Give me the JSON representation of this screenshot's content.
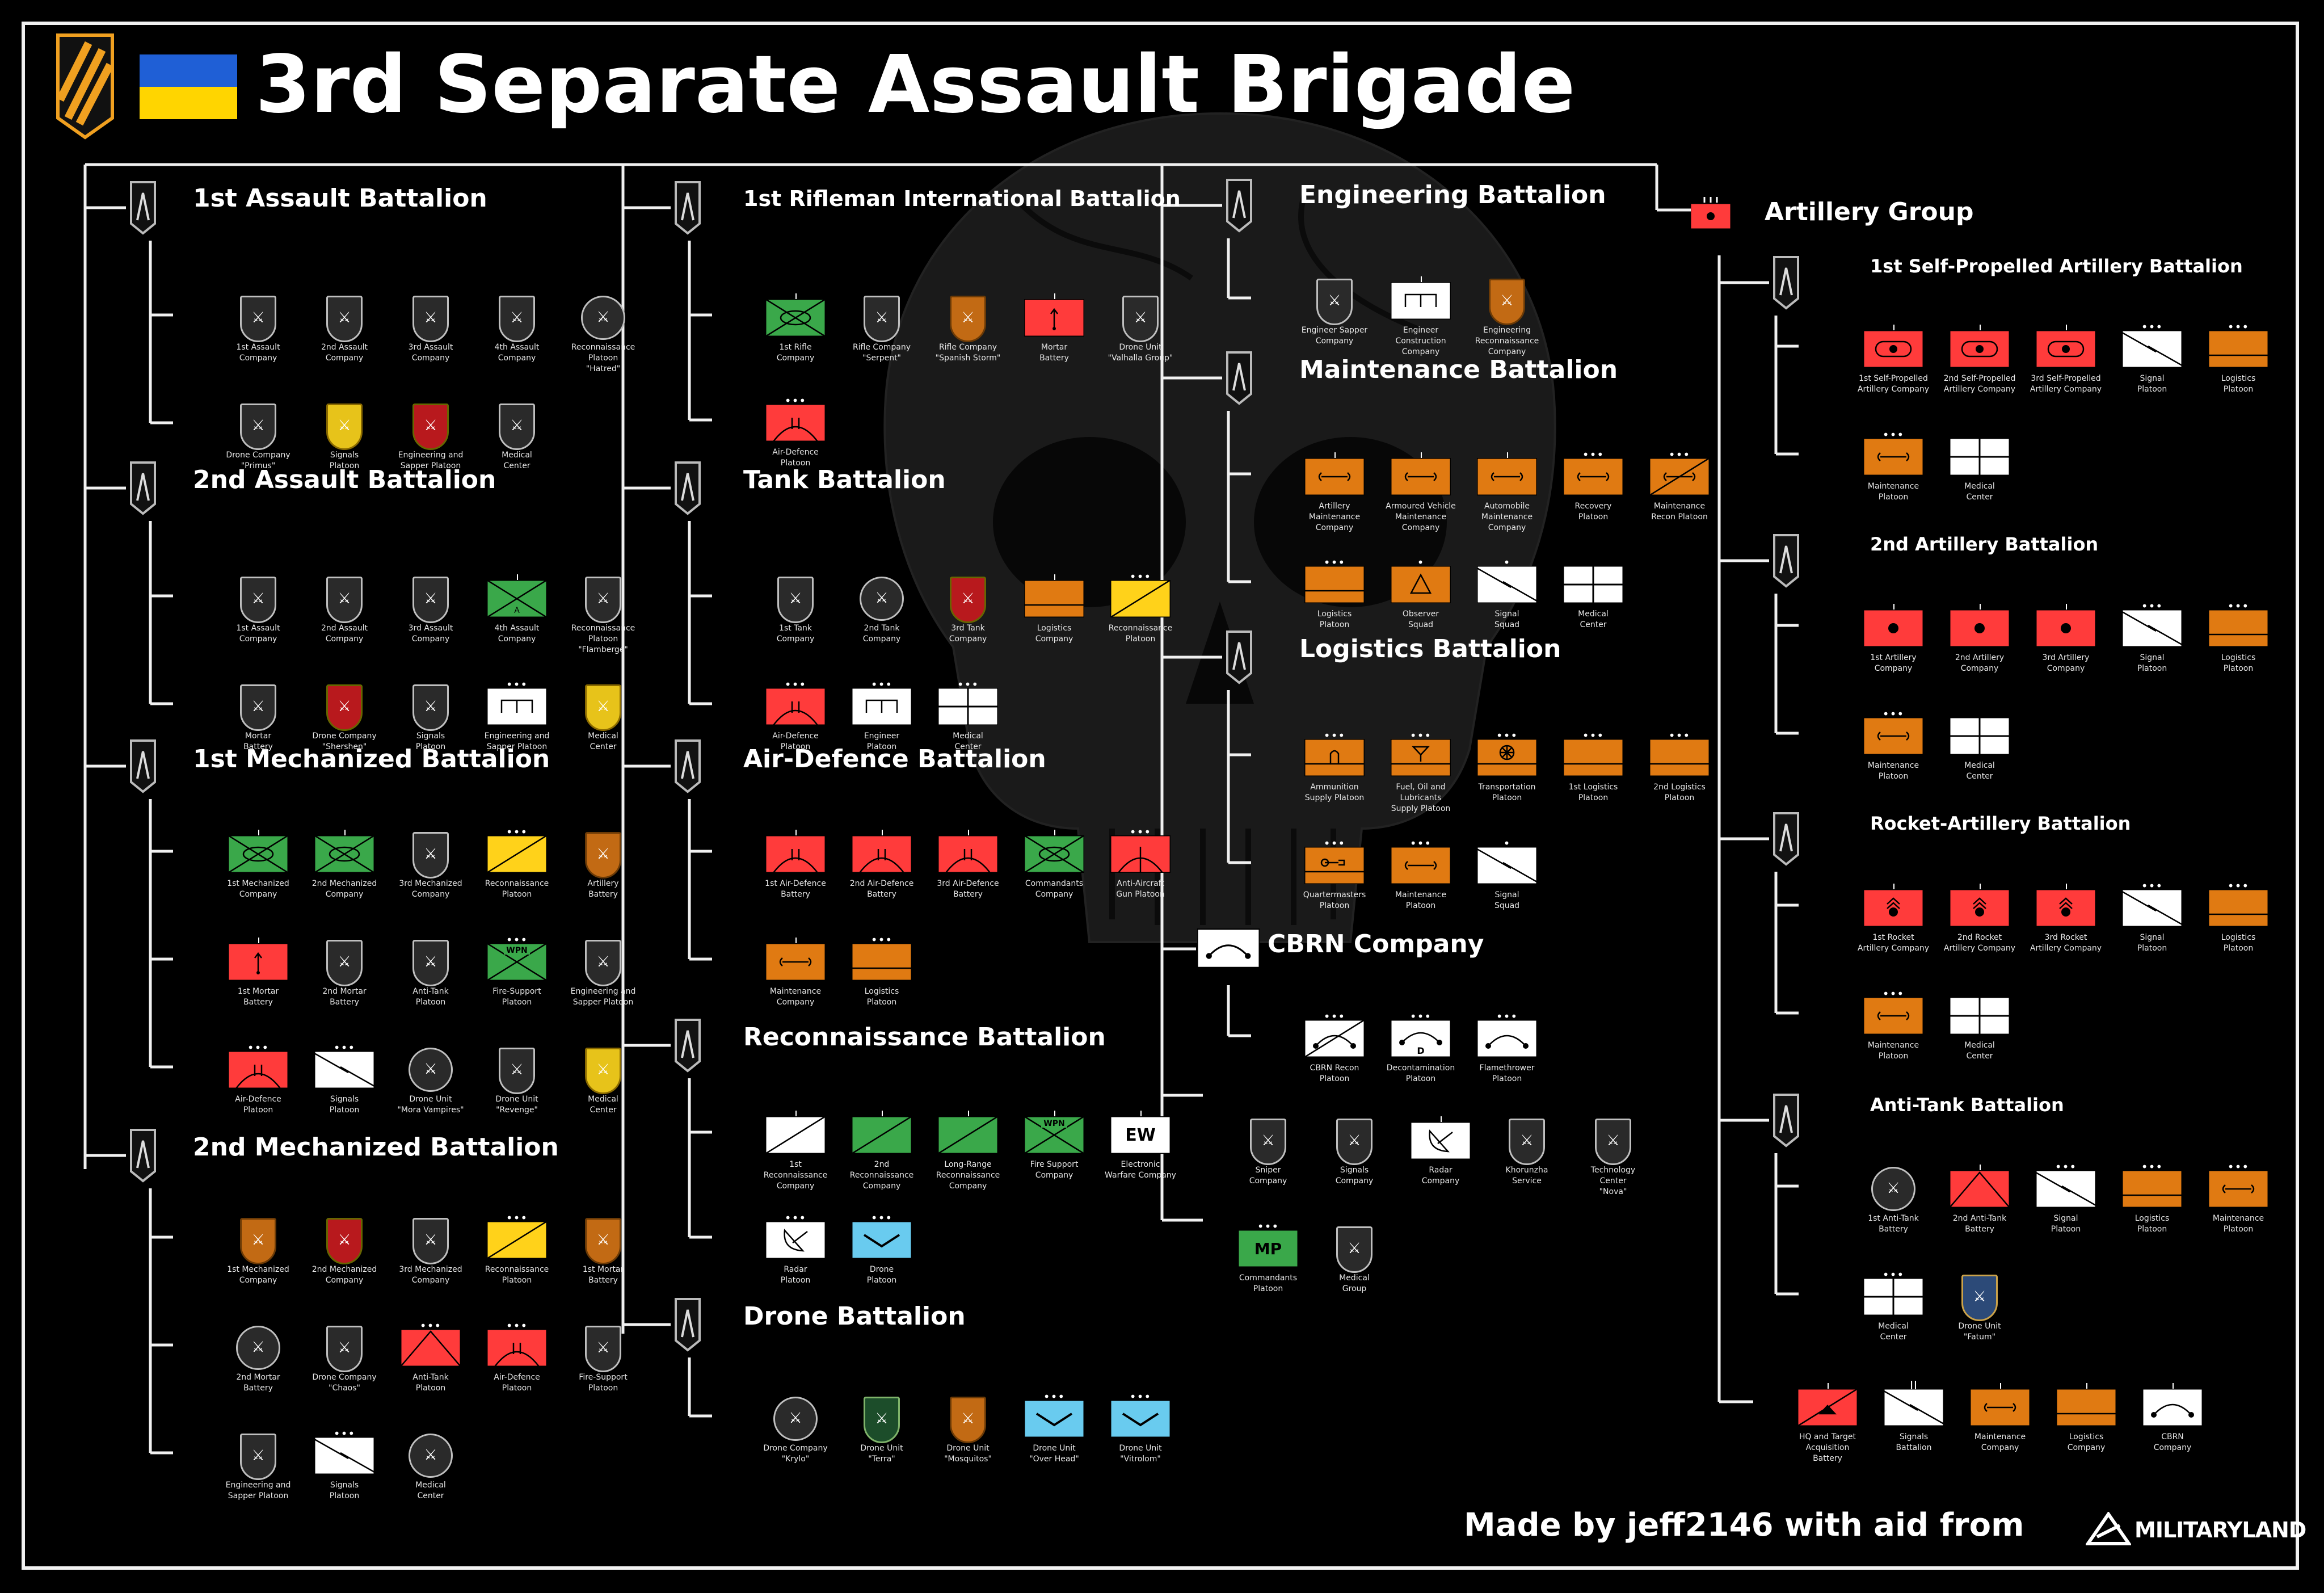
{
  "title": "3rd Separate Assault Brigade",
  "credit": "Made by jeff2146 with aid from",
  "credit_logo": "MILITARYLAND",
  "colors": {
    "orange": "#e07a12",
    "red": "#ff3b3b",
    "green": "#3aa84a",
    "yellow": "#ffd21a",
    "blue": "#69cbef",
    "white": "#ffffff"
  },
  "sections": [
    {
      "title": "1st Assault Battalion",
      "rows": [
        [
          {
            "label": "1st Assault\nCompany",
            "t": "patch"
          },
          {
            "label": "2nd Assault\nCompany",
            "t": "patch"
          },
          {
            "label": "3rd Assault\nCompany",
            "t": "patch"
          },
          {
            "label": "4th Assault\nCompany",
            "t": "patch"
          },
          {
            "label": "Reconnaissance\nPlatoon\n\"Hatred\"",
            "t": "round"
          }
        ],
        [
          {
            "label": "Drone Company\n\"Primus\"",
            "t": "patch"
          },
          {
            "label": "Signals\nPlatoon",
            "t": "patchY"
          },
          {
            "label": "Engineering and\nSapper Platoon",
            "t": "patchR"
          },
          {
            "label": "Medical\nCenter",
            "t": "patch"
          }
        ]
      ]
    },
    {
      "title": "2nd Assault Battalion",
      "rows": [
        [
          {
            "label": "1st Assault\nCompany",
            "t": "patch"
          },
          {
            "label": "2nd Assault\nCompany",
            "t": "patch"
          },
          {
            "label": "3rd Assault\nCompany",
            "t": "patch"
          },
          {
            "label": "4th Assault\nCompany",
            "t": "grnA",
            "tick": true
          },
          {
            "label": "Reconnaissance\nPlatoon\n\"Flamberge\"",
            "t": "patch"
          }
        ],
        [
          {
            "label": "Mortar\nBattery",
            "t": "patch"
          },
          {
            "label": "Drone Company\n\"Shershen\"",
            "t": "patchR"
          },
          {
            "label": "Signals\nPlatoon",
            "t": "patch"
          },
          {
            "label": "Engineering and\nSapper Platoon",
            "t": "eng",
            "dots": "•••"
          },
          {
            "label": "Medical\nCenter",
            "t": "patchY"
          }
        ]
      ]
    },
    {
      "title": "1st Mechanized Battalion",
      "rows": [
        [
          {
            "label": "1st Mechanized\nCompany",
            "t": "mech",
            "tick": true
          },
          {
            "label": "2nd Mechanized\nCompany",
            "t": "mech",
            "tick": true
          },
          {
            "label": "3rd Mechanized\nCompany",
            "t": "patch"
          },
          {
            "label": "Reconnaissance\nPlatoon",
            "t": "recon",
            "dots": "•••"
          },
          {
            "label": "Artillery\nBattery",
            "t": "patchO"
          }
        ],
        [
          {
            "label": "1st Mortar\nBattery",
            "t": "mortar",
            "tick": true
          },
          {
            "label": "2nd Mortar\nBattery",
            "t": "patch"
          },
          {
            "label": "Anti-Tank\nPlatoon",
            "t": "patch"
          },
          {
            "label": "Fire-Support\nPlatoon",
            "t": "wpn",
            "dots": "•••"
          },
          {
            "label": "Engineering and\nSapper Platoon",
            "t": "patch"
          }
        ],
        [
          {
            "label": "Air-Defence\nPlatoon",
            "t": "airdef",
            "dots": "•••"
          },
          {
            "label": "Signals\nPlatoon",
            "t": "signal",
            "dots": "•••"
          },
          {
            "label": "Drone Unit\n\"Mora Vampires\"",
            "t": "round"
          },
          {
            "label": "Drone Unit\n\"Revenge\"",
            "t": "patch"
          },
          {
            "label": "Medical\nCenter",
            "t": "patchY"
          }
        ]
      ]
    },
    {
      "title": "2nd Mechanized Battalion",
      "rows": [
        [
          {
            "label": "1st Mechanized\nCompany",
            "t": "patchO"
          },
          {
            "label": "2nd Mechanized\nCompany",
            "t": "patchR"
          },
          {
            "label": "3rd Mechanized\nCompany",
            "t": "patch"
          },
          {
            "label": "Reconnaissance\nPlatoon",
            "t": "recon",
            "dots": "•••"
          },
          {
            "label": "1st Mortar\nBattery",
            "t": "patchO"
          }
        ],
        [
          {
            "label": "2nd Mortar\nBattery",
            "t": "round"
          },
          {
            "label": "Drone Company\n\"Chaos\"",
            "t": "patch"
          },
          {
            "label": "Anti-Tank\nPlatoon",
            "t": "antitank",
            "dots": "•••"
          },
          {
            "label": "Air-Defence\nPlatoon",
            "t": "airdef",
            "dots": "•••"
          },
          {
            "label": "Fire-Support\nPlatoon",
            "t": "patch"
          }
        ],
        [
          {
            "label": "Engineering and\nSapper Platoon",
            "t": "patch"
          },
          {
            "label": "Signals\nPlatoon",
            "t": "signal",
            "dots": "•••"
          },
          {
            "label": "Medical\nCenter",
            "t": "round"
          }
        ]
      ]
    },
    {
      "title": "1st Rifleman International Battalion",
      "rows": [
        [
          {
            "label": "1st Rifle\nCompany",
            "t": "mech",
            "tick": true
          },
          {
            "label": "Rifle Company\n\"Serpent\"",
            "t": "patch"
          },
          {
            "label": "Rifle Company\n\"Spanish Storm\"",
            "t": "patchO"
          },
          {
            "label": "Mortar\nBattery",
            "t": "mortar",
            "tick": true
          },
          {
            "label": "Drone Unit\n\"Valhalla Group\"",
            "t": "patch"
          }
        ],
        [
          {
            "label": "Air-Defence\nPlatoon",
            "t": "airdef",
            "dots": "•••"
          }
        ]
      ]
    },
    {
      "title": "Tank Battalion",
      "rows": [
        [
          {
            "label": "1st Tank\nCompany",
            "t": "patch"
          },
          {
            "label": "2nd Tank\nCompany",
            "t": "round"
          },
          {
            "label": "3rd Tank\nCompany",
            "t": "patchR"
          },
          {
            "label": "Logistics\nCompany",
            "t": "logistics",
            "tick": true
          },
          {
            "label": "Reconnaissance\nPlatoon",
            "t": "recon",
            "dots": "•••"
          }
        ],
        [
          {
            "label": "Air-Defence\nPlatoon",
            "t": "airdef",
            "dots": "•••"
          },
          {
            "label": "Engineer\nPlatoon",
            "t": "eng",
            "dots": "•••"
          },
          {
            "label": "Medical\nCenter",
            "t": "medical",
            "dots": "•••"
          }
        ]
      ]
    },
    {
      "title": "Air-Defence Battalion",
      "rows": [
        [
          {
            "label": "1st Air-Defence\nBattery",
            "t": "airdef",
            "tick": true
          },
          {
            "label": "2nd Air-Defence\nBattery",
            "t": "airdef",
            "tick": true
          },
          {
            "label": "3rd Air-Defence\nBattery",
            "t": "airdef",
            "tick": true
          },
          {
            "label": "Commandants\nCompany",
            "t": "mech",
            "tick": true
          },
          {
            "label": "Anti-Aircraft\nGun Platoon",
            "t": "aagun",
            "dots": "•••"
          }
        ],
        [
          {
            "label": "Maintenance\nCompany",
            "t": "maint",
            "tick": true
          },
          {
            "label": "Logistics\nPlatoon",
            "t": "logistics",
            "dots": "•••"
          }
        ]
      ]
    },
    {
      "title": "Reconnaissance Battalion",
      "rows": [
        [
          {
            "label": "1st\nReconnaissance\nCompany",
            "t": "reconW",
            "tick": true
          },
          {
            "label": "2nd\nReconnaissance\nCompany",
            "t": "greenR",
            "tick": true
          },
          {
            "label": "Long-Range\nReconnaissance\nCompany",
            "t": "greenR",
            "tick": true
          },
          {
            "label": "Fire Support\nCompany",
            "t": "wpn",
            "tick": true
          },
          {
            "label": "Electronic\nWarfare Company",
            "t": "ew",
            "ew": "EW",
            "tick": true
          }
        ],
        [
          {
            "label": "Radar\nPlatoon",
            "t": "radar",
            "dots": "•••"
          },
          {
            "label": "Drone\nPlatoon",
            "t": "drone",
            "dots": "•••"
          }
        ]
      ]
    },
    {
      "title": "Drone Battalion",
      "rows": [
        [
          {
            "label": "Drone Company\n\"Krylo\"",
            "t": "round"
          },
          {
            "label": "Drone Unit\n\"Terra\"",
            "t": "patchG"
          },
          {
            "label": "Drone Unit\n\"Mosquitos\"",
            "t": "patchO"
          },
          {
            "label": "Drone Unit\n\"Over Head\"",
            "t": "drone",
            "dots": "•••"
          },
          {
            "label": "Drone Unit\n\"Vitrolom\"",
            "t": "drone",
            "dots": "•••"
          }
        ]
      ]
    },
    {
      "title": "Engineering Battalion",
      "rows": [
        [
          {
            "label": "Engineer Sapper\nCompany",
            "t": "patch"
          },
          {
            "label": "Engineer\nConstruction\nCompany",
            "t": "eng",
            "tick": true
          },
          {
            "label": "Engineering\nReconnaissance\nCompany",
            "t": "patchO"
          }
        ]
      ]
    },
    {
      "title": "Maintenance Battalion",
      "rows": [
        [
          {
            "label": "Artillery\nMaintenance\nCompany",
            "t": "maint",
            "tick": true
          },
          {
            "label": "Armoured Vehicle\nMaintenance\nCompany",
            "t": "maint",
            "tick": true
          },
          {
            "label": "Automobile\nMaintenance\nCompany",
            "t": "maint",
            "tick": true
          },
          {
            "label": "Recovery\nPlatoon",
            "t": "maint",
            "dots": "•••"
          },
          {
            "label": "Maintenance\nRecon Platoon",
            "t": "maintR",
            "dots": "•••"
          }
        ],
        [
          {
            "label": "Logistics\nPlatoon",
            "t": "logistics",
            "dots": "•••"
          },
          {
            "label": "Observer\nSquad",
            "t": "observer",
            "dots": "•"
          },
          {
            "label": "Signal\nSquad",
            "t": "signal",
            "dots": "•"
          },
          {
            "label": "Medical\nCenter",
            "t": "medical"
          }
        ]
      ]
    },
    {
      "title": "Logistics Battalion",
      "rows": [
        [
          {
            "label": "Ammunition\nSupply Platoon",
            "t": "ammo",
            "dots": "•••"
          },
          {
            "label": "Fuel, Oil and\nLubricants\nSupply Platoon",
            "t": "fuel",
            "dots": "•••"
          },
          {
            "label": "Transportation\nPlatoon",
            "t": "transport",
            "dots": "•••"
          },
          {
            "label": "1st Logistics\nPlatoon",
            "t": "logistics",
            "dots": "•••"
          },
          {
            "label": "2nd Logistics\nPlatoon",
            "t": "logistics",
            "dots": "•••"
          }
        ],
        [
          {
            "label": "Quartermasters\nPlatoon",
            "t": "quarter",
            "dots": "•••"
          },
          {
            "label": "Maintenance\nPlatoon",
            "t": "maint",
            "dots": "•••"
          },
          {
            "label": "Signal\nSquad",
            "t": "signal",
            "dots": "•"
          }
        ]
      ]
    },
    {
      "title": "CBRN Company",
      "rows": [
        [
          {
            "label": "CBRN Recon\nPlatoon",
            "t": "cbrnR",
            "dots": "•••"
          },
          {
            "label": "Decontamination\nPlatoon",
            "t": "cbrnD",
            "dots": "•••",
            "d": "D"
          },
          {
            "label": "Flamethrower\nPlatoon",
            "t": "cbrn",
            "dots": "•••"
          }
        ]
      ]
    },
    {
      "title": "",
      "rows": [
        [
          {
            "label": "Sniper\nCompany",
            "t": "patch"
          },
          {
            "label": "Signals\nCompany",
            "t": "patch"
          },
          {
            "label": "Radar\nCompany",
            "t": "radar",
            "tick": true
          },
          {
            "label": "Khorunzha\nService",
            "t": "patch"
          },
          {
            "label": "Technology\nCenter\n\"Nova\"",
            "t": "patch"
          }
        ],
        [
          {
            "label": "Commandants\nPlatoon",
            "t": "mp",
            "mp": "MP",
            "dots": "•••"
          },
          {
            "label": "Medical\nGroup",
            "t": "patch"
          }
        ]
      ]
    },
    {
      "title": "Artillery Group",
      "rows": []
    },
    {
      "title": "1st Self-Propelled Artillery Battalion",
      "rows": [
        [
          {
            "label": "1st Self-Propelled\nArtillery Company",
            "t": "spArt",
            "tick": true
          },
          {
            "label": "2nd Self-Propelled\nArtillery Company",
            "t": "spArt",
            "tick": true
          },
          {
            "label": "3rd Self-Propelled\nArtillery Company",
            "t": "spArt",
            "tick": true
          },
          {
            "label": "Signal\nPlatoon",
            "t": "signal",
            "dots": "•••"
          },
          {
            "label": "Logistics\nPlatoon",
            "t": "logistics",
            "dots": "•••"
          }
        ],
        [
          {
            "label": "Maintenance\nPlatoon",
            "t": "maint",
            "dots": "•••"
          },
          {
            "label": "Medical\nCenter",
            "t": "medical"
          }
        ]
      ]
    },
    {
      "title": "2nd Artillery Battalion",
      "rows": [
        [
          {
            "label": "1st Artillery\nCompany",
            "t": "art",
            "tick": true
          },
          {
            "label": "2nd Artillery\nCompany",
            "t": "art",
            "tick": true
          },
          {
            "label": "3rd Artillery\nCompany",
            "t": "art",
            "tick": true
          },
          {
            "label": "Signal\nPlatoon",
            "t": "signal",
            "dots": "•••"
          },
          {
            "label": "Logistics\nPlatoon",
            "t": "logistics",
            "dots": "•••"
          }
        ],
        [
          {
            "label": "Maintenance\nPlatoon",
            "t": "maint",
            "dots": "•••"
          },
          {
            "label": "Medical\nCenter",
            "t": "medical"
          }
        ]
      ]
    },
    {
      "title": "Rocket-Artillery Battalion",
      "rows": [
        [
          {
            "label": "1st Rocket\nArtillery Company",
            "t": "rocket",
            "tick": true
          },
          {
            "label": "2nd Rocket\nArtillery Company",
            "t": "rocket",
            "tick": true
          },
          {
            "label": "3rd Rocket\nArtillery Company",
            "t": "rocket",
            "tick": true
          },
          {
            "label": "Signal\nPlatoon",
            "t": "signal",
            "dots": "•••"
          },
          {
            "label": "Logistics\nPlatoon",
            "t": "logistics",
            "dots": "•••"
          }
        ],
        [
          {
            "label": "Maintenance\nPlatoon",
            "t": "maint",
            "dots": "•••"
          },
          {
            "label": "Medical\nCenter",
            "t": "medical"
          }
        ]
      ]
    },
    {
      "title": "Anti-Tank Battalion",
      "rows": [
        [
          {
            "label": "1st Anti-Tank\nBattery",
            "t": "round"
          },
          {
            "label": "2nd Anti-Tank\nBattery",
            "t": "antitank",
            "tick": true
          },
          {
            "label": "Signal\nPlatoon",
            "t": "signal",
            "dots": "•••"
          },
          {
            "label": "Logistics\nPlatoon",
            "t": "logistics",
            "dots": "•••"
          },
          {
            "label": "Maintenance\nPlatoon",
            "t": "maint",
            "dots": "•••"
          }
        ],
        [
          {
            "label": "Medical\nCenter",
            "t": "medical",
            "dots": "•••"
          },
          {
            "label": "Drone Unit\n\"Fatum\"",
            "t": "patchB"
          }
        ]
      ]
    },
    {
      "title": "",
      "rows": [
        [
          {
            "label": "HQ and Target\nAcquisition\nBattery",
            "t": "hqta",
            "tick": true
          },
          {
            "label": "Signals\nBattalion",
            "t": "signal",
            "dots": "II"
          },
          {
            "label": "Maintenance\nCompany",
            "t": "maint",
            "tick": true
          },
          {
            "label": "Logistics\nCompany",
            "t": "logistics",
            "tick": true
          },
          {
            "label": "CBRN\nCompany",
            "t": "cbrn",
            "tick": true
          }
        ]
      ]
    }
  ]
}
